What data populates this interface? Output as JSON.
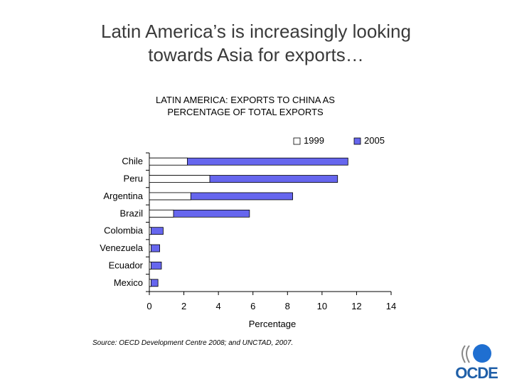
{
  "slide": {
    "title_line1": "Latin America’s is  increasingly looking",
    "title_line2": "towards Asia for exports…",
    "source": "Source: OECD Development Centre 2008; and UNCTAD, 2007.",
    "logo_text": "OCDE"
  },
  "chart_data": {
    "type": "bar",
    "orientation": "horizontal",
    "title_line1": "LATIN AMERICA: EXPORTS TO CHINA AS",
    "title_line2": "PERCENTAGE OF TOTAL EXPORTS",
    "categories": [
      "Chile",
      "Peru",
      "Argentina",
      "Brazil",
      "Colombia",
      "Venezuela",
      "Ecuador",
      "Mexico"
    ],
    "series": [
      {
        "name": "1999",
        "color": "#ffffff",
        "values": [
          2.2,
          3.5,
          2.4,
          1.4,
          0.1,
          0.1,
          0.1,
          0.1
        ]
      },
      {
        "name": "2005",
        "color": "#6666ee",
        "values": [
          11.5,
          10.9,
          8.3,
          5.8,
          0.8,
          0.6,
          0.7,
          0.5
        ]
      }
    ],
    "xlabel": "Percentage",
    "xlim": [
      0,
      14
    ],
    "xticks": [
      0,
      2,
      4,
      6,
      8,
      10,
      12,
      14
    ],
    "legend_position": "top-right"
  }
}
